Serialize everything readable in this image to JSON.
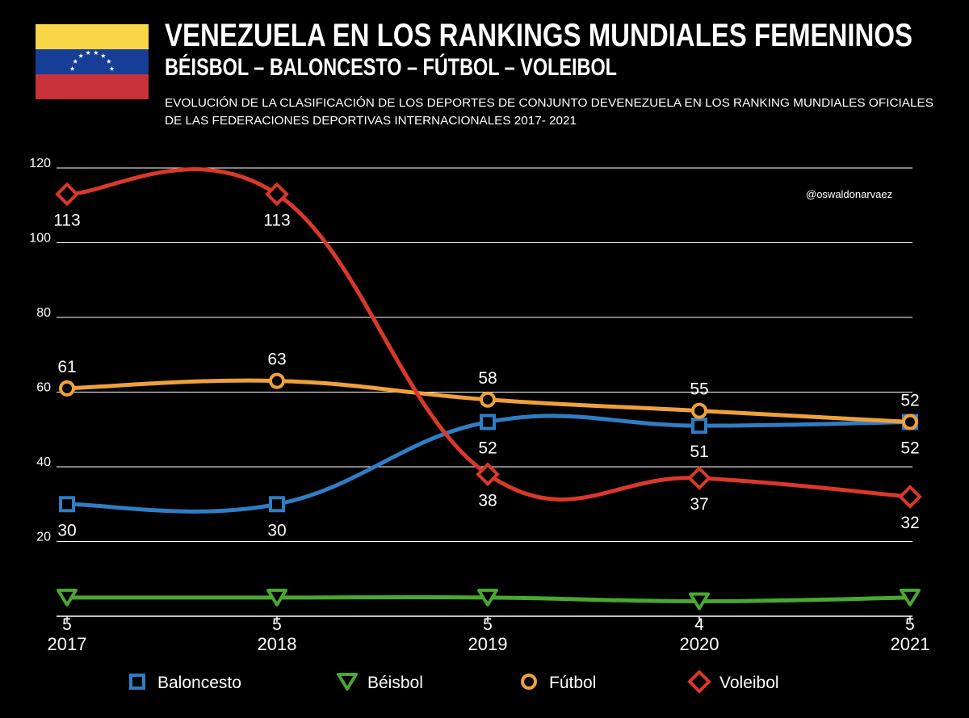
{
  "header": {
    "title": "VENEZUELA EN LOS RANKINGS MUNDIALES FEMENINOS",
    "subtitle": "BÉISBOL – BALONCESTO – FÚTBOL – VOLEIBOL",
    "description_line1": "EVOLUCIÓN DE LA CLASIFICACIÓN DE LOS DEPORTES DE CONJUNTO DEVENEZUELA EN LOS RANKING MUNDIALES OFICIALES",
    "description_line2": "DE LAS FEDERACIONES DEPORTIVAS INTERNACIONALES 2017- 2021",
    "credit": "@oswaldonarvaez"
  },
  "flag": {
    "yellow": "#F9D648",
    "blue": "#173E97",
    "red": "#C8313A",
    "star": "#FFFFFF"
  },
  "colors": {
    "background": "#000000",
    "grid": "#FFFFFF",
    "axis": "#FFFFFF"
  },
  "chart_data": {
    "type": "line",
    "title": "VENEZUELA EN LOS RANKINGS MUNDIALES FEMENINOS",
    "xlabel": "",
    "ylabel": "",
    "categories": [
      "2017",
      "2018",
      "2019",
      "2020",
      "2021"
    ],
    "ylim": [
      0,
      120
    ],
    "yticks": [
      20,
      40,
      60,
      80,
      100,
      120
    ],
    "grid": true,
    "legend_position": "bottom",
    "series": [
      {
        "name": "Baloncesto",
        "values": [
          30,
          30,
          52,
          51,
          52
        ],
        "color": "#2F7DC4",
        "marker": "square",
        "label_pos": [
          "below",
          "below",
          "below",
          "below",
          "below"
        ]
      },
      {
        "name": "Béisbol",
        "values": [
          5,
          5,
          5,
          4,
          5
        ],
        "color": "#49A732",
        "marker": "triangle",
        "label_pos": [
          "below",
          "below",
          "below",
          "below",
          "below"
        ]
      },
      {
        "name": "Fútbol",
        "values": [
          61,
          63,
          58,
          55,
          52
        ],
        "color": "#F0A03A",
        "marker": "circle",
        "label_pos": [
          "above",
          "above",
          "above",
          "above",
          "above"
        ]
      },
      {
        "name": "Voleibol",
        "values": [
          113,
          113,
          38,
          37,
          32
        ],
        "color": "#D9382A",
        "marker": "diamond",
        "label_pos": [
          "below",
          "below",
          "below",
          "below",
          "below"
        ]
      }
    ]
  },
  "legend": {
    "items": [
      "Baloncesto",
      "Béisbol",
      "Fútbol",
      "Voleibol"
    ]
  }
}
